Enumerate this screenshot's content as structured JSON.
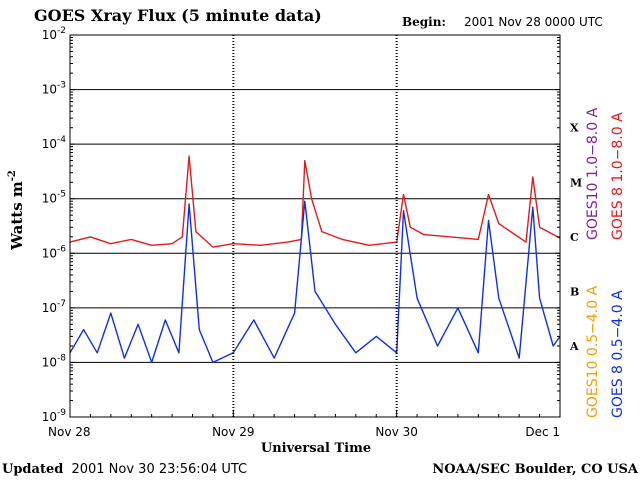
{
  "chart_data": {
    "type": "line",
    "title": "GOES Xray Flux (5 minute data)",
    "begin_label": "Begin:",
    "begin_value": "2001 Nov 28 0000 UTC",
    "ylabel": "Watts m",
    "ylabel_sup": "-2",
    "xlabel": "Universal Time",
    "y_scale": "log",
    "ylim": [
      1e-09,
      0.01
    ],
    "y_ticks": [
      {
        "value": 0.01,
        "base": "10",
        "exp": "-2"
      },
      {
        "value": 0.001,
        "base": "10",
        "exp": "-3"
      },
      {
        "value": 0.0001,
        "base": "10",
        "exp": "-4"
      },
      {
        "value": 1e-05,
        "base": "10",
        "exp": "-5"
      },
      {
        "value": 1e-06,
        "base": "10",
        "exp": "-6"
      },
      {
        "value": 1e-07,
        "base": "10",
        "exp": "-7"
      },
      {
        "value": 1e-08,
        "base": "10",
        "exp": "-8"
      },
      {
        "value": 1e-09,
        "base": "10",
        "exp": "-9"
      }
    ],
    "xlim": [
      "2001-11-28 00:00",
      "2001-12-01 00:00"
    ],
    "x_ticks": [
      {
        "date": "2001-11-28",
        "label": "Nov 28"
      },
      {
        "date": "2001-11-29",
        "label": "Nov 29"
      },
      {
        "date": "2001-11-30",
        "label": "Nov 30"
      },
      {
        "date": "2001-12-01",
        "label": "Dec 1"
      }
    ],
    "flare_classes": [
      {
        "label": "X",
        "value": 0.0002
      },
      {
        "label": "M",
        "value": 2e-05
      },
      {
        "label": "C",
        "value": 2e-06
      },
      {
        "label": "B",
        "value": 2e-07
      },
      {
        "label": "A",
        "value": 2e-08
      }
    ],
    "gridlines": [
      0.001,
      0.0001,
      1e-05,
      1e-06,
      1e-07,
      1e-08
    ],
    "series_labels": [
      {
        "text": "GOES10 1.0−8.0 A",
        "color": "#7f20a0"
      },
      {
        "text": "GOES 8 1.0−8.0 A",
        "color": "#e21a1a"
      },
      {
        "text": "GOES10 0.5−4.0 A",
        "color": "#f2a000"
      },
      {
        "text": "GOES 8 0.5−4.0 A",
        "color": "#1030e0"
      }
    ],
    "series": [
      {
        "name": "GOES 8 1.0−8.0 A",
        "color": "#e21a1a",
        "x": [
          "2001-11-28 00:00",
          "2001-11-28 03:00",
          "2001-11-28 06:00",
          "2001-11-28 09:00",
          "2001-11-28 12:00",
          "2001-11-28 15:00",
          "2001-11-28 16:30",
          "2001-11-28 17:30",
          "2001-11-28 18:30",
          "2001-11-28 21:00",
          "2001-11-29 00:00",
          "2001-11-29 04:00",
          "2001-11-29 08:00",
          "2001-11-29 10:00",
          "2001-11-29 10:30",
          "2001-11-29 11:30",
          "2001-11-29 13:00",
          "2001-11-29 16:00",
          "2001-11-29 20:00",
          "2001-11-30 00:00",
          "2001-11-30 01:00",
          "2001-11-30 02:00",
          "2001-11-30 04:00",
          "2001-11-30 08:00",
          "2001-11-30 12:00",
          "2001-11-30 13:30",
          "2001-11-30 15:00",
          "2001-11-30 19:00",
          "2001-11-30 20:00",
          "2001-11-30 21:00",
          "2001-12-01 00:00"
        ],
        "values": [
          1.6e-06,
          2e-06,
          1.5e-06,
          1.8e-06,
          1.4e-06,
          1.5e-06,
          2e-06,
          6e-05,
          2.5e-06,
          1.3e-06,
          1.5e-06,
          1.4e-06,
          1.6e-06,
          1.8e-06,
          5e-05,
          1e-05,
          2.5e-06,
          1.8e-06,
          1.4e-06,
          1.6e-06,
          1.2e-05,
          3e-06,
          2.2e-06,
          2e-06,
          1.8e-06,
          1.2e-05,
          3.5e-06,
          1.6e-06,
          2.5e-05,
          3e-06,
          1.9e-06
        ]
      },
      {
        "name": "GOES 8 0.5−4.0 A",
        "color": "#1030e0",
        "x": [
          "2001-11-28 00:00",
          "2001-11-28 02:00",
          "2001-11-28 04:00",
          "2001-11-28 06:00",
          "2001-11-28 08:00",
          "2001-11-28 10:00",
          "2001-11-28 12:00",
          "2001-11-28 14:00",
          "2001-11-28 16:00",
          "2001-11-28 17:30",
          "2001-11-28 19:00",
          "2001-11-28 21:00",
          "2001-11-29 00:00",
          "2001-11-29 03:00",
          "2001-11-29 06:00",
          "2001-11-29 09:00",
          "2001-11-29 10:30",
          "2001-11-29 12:00",
          "2001-11-29 15:00",
          "2001-11-29 18:00",
          "2001-11-29 21:00",
          "2001-11-30 00:00",
          "2001-11-30 01:00",
          "2001-11-30 03:00",
          "2001-11-30 06:00",
          "2001-11-30 09:00",
          "2001-11-30 12:00",
          "2001-11-30 13:30",
          "2001-11-30 15:00",
          "2001-11-30 18:00",
          "2001-11-30 20:00",
          "2001-11-30 21:00",
          "2001-11-30 23:00",
          "2001-12-01 00:00"
        ],
        "values": [
          1.5e-08,
          4e-08,
          1.5e-08,
          8e-08,
          1.2e-08,
          5e-08,
          1e-08,
          6e-08,
          1.5e-08,
          8e-06,
          4e-08,
          1e-08,
          1.5e-08,
          6e-08,
          1.2e-08,
          8e-08,
          9e-06,
          2e-07,
          5e-08,
          1.5e-08,
          3e-08,
          1.5e-08,
          6e-06,
          1.5e-07,
          2e-08,
          1e-07,
          1.5e-08,
          4e-06,
          1.5e-07,
          1.2e-08,
          7e-06,
          1.5e-07,
          2e-08,
          3e-08
        ]
      }
    ]
  },
  "footer": {
    "updated_label": "Updated",
    "updated_value": "2001 Nov 30 23:56:04 UTC",
    "source": "NOAA/SEC Boulder, CO USA"
  }
}
